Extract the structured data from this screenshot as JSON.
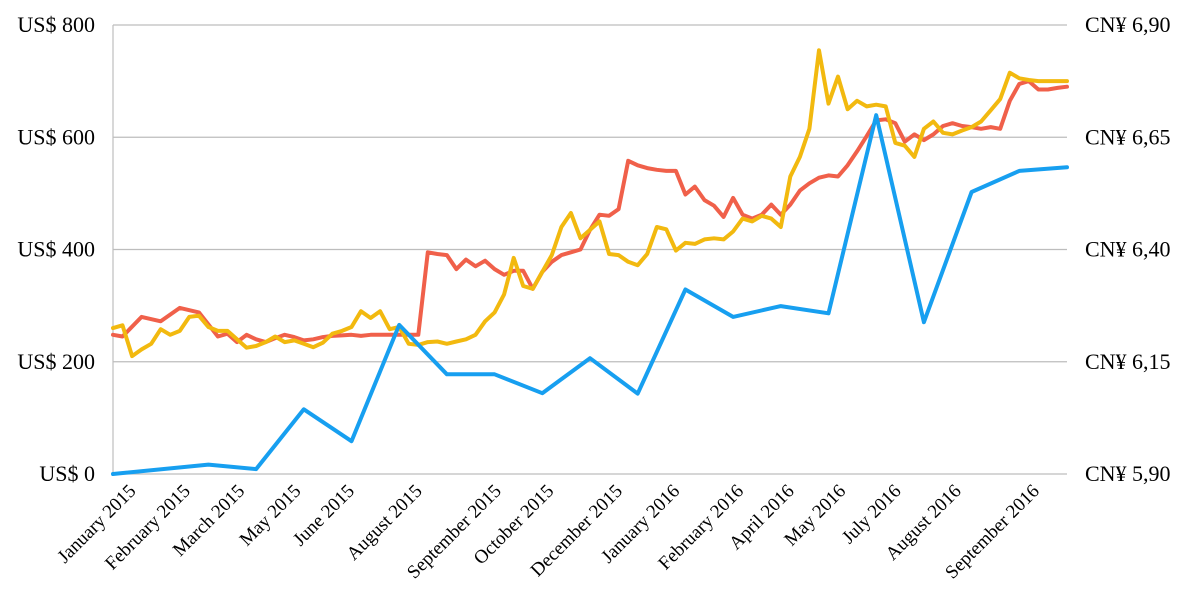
{
  "chart_data": {
    "type": "line",
    "title": "",
    "xlabel": "",
    "ylabel": "",
    "y_left": {
      "ylim": [
        0,
        800
      ],
      "ticks": [
        0,
        200,
        400,
        600,
        800
      ],
      "tick_labels": [
        "US$ 0",
        "US$ 200",
        "US$ 400",
        "US$ 600",
        "US$ 800"
      ]
    },
    "y_right": {
      "ylim": [
        5.9,
        6.9
      ],
      "ticks": [
        5.9,
        6.15,
        6.4,
        6.65,
        6.9
      ],
      "tick_labels": [
        "CN¥ 5,90",
        "CN¥ 6,15",
        "CN¥ 6,40",
        "CN¥ 6,65",
        "CN¥ 6,90"
      ]
    },
    "x_range": [
      0,
      100
    ],
    "x_ticks": [
      {
        "x": 2.5,
        "label": "January 2015"
      },
      {
        "x": 8.2,
        "label": "February 2015"
      },
      {
        "x": 13.9,
        "label": "March 2015"
      },
      {
        "x": 19.8,
        "label": "May 2015"
      },
      {
        "x": 25.4,
        "label": "June 2015"
      },
      {
        "x": 32.5,
        "label": "August 2015"
      },
      {
        "x": 40.8,
        "label": "September 2015"
      },
      {
        "x": 46.3,
        "label": "October 2015"
      },
      {
        "x": 53.5,
        "label": "December 2015"
      },
      {
        "x": 59.5,
        "label": "January 2016"
      },
      {
        "x": 66.2,
        "label": "February 2016"
      },
      {
        "x": 71.5,
        "label": "April 2016"
      },
      {
        "x": 76.9,
        "label": "May 2016"
      },
      {
        "x": 82.7,
        "label": "July 2016"
      },
      {
        "x": 89.0,
        "label": "August 2016"
      },
      {
        "x": 97.2,
        "label": "September 2016"
      }
    ],
    "grid": true,
    "legend": "none",
    "series": [
      {
        "axis": "left",
        "color": "#f0604a",
        "x": [
          0,
          1,
          3,
          5,
          7,
          9,
          11,
          12,
          13,
          14,
          15,
          16,
          17,
          18,
          19,
          20,
          21,
          22,
          23,
          24,
          25,
          26,
          27,
          28,
          29,
          30,
          31,
          32,
          33,
          34,
          35,
          36,
          37,
          38,
          39,
          40,
          41,
          42,
          43,
          44,
          45,
          46,
          47,
          48,
          49,
          50,
          51,
          52,
          53,
          54,
          55,
          56,
          57,
          58,
          59,
          60,
          61,
          62,
          63,
          64,
          65,
          66,
          67,
          68,
          69,
          70,
          71,
          72,
          73,
          74,
          75,
          76,
          77,
          78,
          79,
          80,
          81,
          82,
          83,
          84,
          85,
          86,
          87,
          88,
          89,
          90,
          91,
          92,
          93,
          94,
          95,
          96,
          97,
          98,
          99,
          100
        ],
        "values": [
          248,
          245,
          280,
          272,
          296,
          288,
          245,
          250,
          235,
          248,
          240,
          235,
          242,
          248,
          244,
          238,
          240,
          244,
          246,
          247,
          248,
          246,
          248,
          248,
          248,
          248,
          248,
          248,
          395,
          392,
          390,
          365,
          382,
          370,
          380,
          365,
          355,
          362,
          362,
          330,
          360,
          378,
          390,
          395,
          400,
          435,
          462,
          460,
          472,
          558,
          550,
          545,
          542,
          540,
          540,
          498,
          512,
          488,
          478,
          458,
          492,
          462,
          455,
          462,
          480,
          462,
          480,
          505,
          518,
          528,
          532,
          530,
          550,
          575,
          602,
          630,
          632,
          625,
          592,
          605,
          595,
          605,
          620,
          625,
          620,
          618,
          615,
          618,
          615,
          665,
          695,
          700,
          685,
          685,
          688,
          690
        ],
        "note_x_scale": "percent of plot width"
      },
      {
        "axis": "left",
        "color": "#f2b90f",
        "x": [
          0,
          1,
          2,
          3,
          4,
          5,
          6,
          7,
          8,
          9,
          10,
          11,
          12,
          13,
          14,
          15,
          16,
          17,
          18,
          19,
          20,
          21,
          22,
          23,
          24,
          25,
          26,
          27,
          28,
          29,
          30,
          31,
          32,
          33,
          34,
          35,
          36,
          37,
          38,
          39,
          40,
          41,
          42,
          43,
          44,
          45,
          46,
          47,
          48,
          49,
          50,
          51,
          52,
          53,
          54,
          55,
          56,
          57,
          58,
          59,
          60,
          61,
          62,
          63,
          64,
          65,
          66,
          67,
          68,
          69,
          70,
          71,
          72,
          73,
          74,
          75,
          76,
          77,
          78,
          79,
          80,
          81,
          82,
          83,
          84,
          85,
          86,
          87,
          88,
          89,
          90,
          91,
          92,
          93,
          94,
          95,
          96,
          97,
          98,
          99,
          100
        ],
        "values": [
          260,
          265,
          210,
          222,
          232,
          258,
          248,
          255,
          280,
          282,
          262,
          255,
          255,
          240,
          225,
          228,
          235,
          245,
          235,
          238,
          232,
          226,
          234,
          250,
          255,
          262,
          290,
          278,
          290,
          258,
          262,
          232,
          230,
          235,
          236,
          232,
          236,
          240,
          248,
          272,
          288,
          320,
          385,
          335,
          330,
          360,
          390,
          440,
          465,
          420,
          435,
          450,
          392,
          390,
          378,
          372,
          392,
          440,
          436,
          398,
          412,
          410,
          418,
          420,
          418,
          432,
          455,
          450,
          460,
          455,
          440,
          530,
          565,
          615,
          755,
          660,
          708,
          650,
          665,
          655,
          658,
          655,
          590,
          585,
          565,
          615,
          628,
          608,
          605,
          612,
          618,
          628,
          648,
          668,
          715,
          705,
          702,
          700,
          700,
          700,
          700
        ],
        "note_x_scale": "percent of plot width"
      },
      {
        "axis": "right",
        "color": "#179ff0",
        "x": [
          0,
          10,
          15,
          20,
          25,
          30,
          35,
          40,
          45,
          50,
          55,
          60,
          65,
          70,
          75,
          80,
          85,
          90,
          95,
          100
        ],
        "values": [
          5.9,
          5.921,
          5.911,
          6.044,
          5.973,
          6.232,
          6.122,
          6.122,
          6.08,
          6.158,
          6.079,
          6.311,
          6.25,
          6.274,
          6.258,
          6.699,
          6.238,
          6.528,
          6.575,
          6.583
        ],
        "note_x_scale": "percent of plot width"
      }
    ]
  }
}
